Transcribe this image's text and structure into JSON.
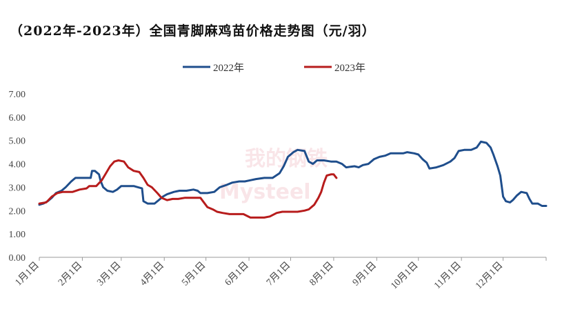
{
  "chart_data": {
    "type": "line",
    "title": "（2022年-2023年）全国青脚麻鸡苗价格走势图（元/羽）",
    "xlabel": "",
    "ylabel": "",
    "ylim": [
      0,
      7
    ],
    "yticks": [
      "0.00",
      "1.00",
      "2.00",
      "3.00",
      "4.00",
      "5.00",
      "6.00",
      "7.00"
    ],
    "xlim": [
      1,
      366
    ],
    "xticks": [
      {
        "day": 1,
        "label": "1月1日"
      },
      {
        "day": 32,
        "label": "2月1日"
      },
      {
        "day": 60,
        "label": "3月1日"
      },
      {
        "day": 91,
        "label": "4月1日"
      },
      {
        "day": 121,
        "label": "5月1日"
      },
      {
        "day": 152,
        "label": "6月1日"
      },
      {
        "day": 182,
        "label": "7月1日"
      },
      {
        "day": 213,
        "label": "8月1日"
      },
      {
        "day": 244,
        "label": "9月1日"
      },
      {
        "day": 274,
        "label": "10月1日"
      },
      {
        "day": 305,
        "label": "11月1日"
      },
      {
        "day": 335,
        "label": "12月1日"
      }
    ],
    "grid": false,
    "legend": "top-center",
    "series": [
      {
        "name": "2022年",
        "color": "#1f4e8c",
        "points": [
          [
            1,
            2.25
          ],
          [
            4,
            2.3
          ],
          [
            7,
            2.4
          ],
          [
            10,
            2.55
          ],
          [
            13,
            2.75
          ],
          [
            17,
            2.85
          ],
          [
            20,
            3.0
          ],
          [
            24,
            3.25
          ],
          [
            27,
            3.4
          ],
          [
            31,
            3.4
          ],
          [
            35,
            3.4
          ],
          [
            38,
            3.4
          ],
          [
            39,
            3.7
          ],
          [
            41,
            3.7
          ],
          [
            44,
            3.55
          ],
          [
            45,
            3.3
          ],
          [
            47,
            3.0
          ],
          [
            50,
            2.85
          ],
          [
            54,
            2.8
          ],
          [
            57,
            2.9
          ],
          [
            60,
            3.05
          ],
          [
            64,
            3.05
          ],
          [
            69,
            3.05
          ],
          [
            72,
            3.0
          ],
          [
            75,
            2.95
          ],
          [
            76,
            2.4
          ],
          [
            79,
            2.3
          ],
          [
            84,
            2.3
          ],
          [
            87,
            2.45
          ],
          [
            90,
            2.6
          ],
          [
            93,
            2.7
          ],
          [
            98,
            2.8
          ],
          [
            102,
            2.85
          ],
          [
            107,
            2.85
          ],
          [
            112,
            2.9
          ],
          [
            115,
            2.85
          ],
          [
            117,
            2.75
          ],
          [
            122,
            2.75
          ],
          [
            127,
            2.8
          ],
          [
            131,
            3.0
          ],
          [
            136,
            3.1
          ],
          [
            140,
            3.2
          ],
          [
            145,
            3.25
          ],
          [
            149,
            3.25
          ],
          [
            153,
            3.3
          ],
          [
            157,
            3.35
          ],
          [
            163,
            3.4
          ],
          [
            169,
            3.4
          ],
          [
            174,
            3.6
          ],
          [
            177,
            3.9
          ],
          [
            180,
            4.3
          ],
          [
            184,
            4.5
          ],
          [
            187,
            4.6
          ],
          [
            192,
            4.55
          ],
          [
            195,
            4.1
          ],
          [
            198,
            4.0
          ],
          [
            201,
            4.15
          ],
          [
            206,
            4.15
          ],
          [
            211,
            4.1
          ],
          [
            215,
            4.1
          ],
          [
            219,
            4.0
          ],
          [
            222,
            3.85
          ],
          [
            228,
            3.9
          ],
          [
            231,
            3.85
          ],
          [
            234,
            3.95
          ],
          [
            238,
            4.0
          ],
          [
            242,
            4.2
          ],
          [
            246,
            4.3
          ],
          [
            250,
            4.35
          ],
          [
            254,
            4.45
          ],
          [
            258,
            4.45
          ],
          [
            263,
            4.45
          ],
          [
            266,
            4.5
          ],
          [
            271,
            4.45
          ],
          [
            274,
            4.4
          ],
          [
            277,
            4.2
          ],
          [
            280,
            4.05
          ],
          [
            282,
            3.8
          ],
          [
            287,
            3.85
          ],
          [
            292,
            3.95
          ],
          [
            297,
            4.1
          ],
          [
            300,
            4.25
          ],
          [
            303,
            4.55
          ],
          [
            307,
            4.6
          ],
          [
            312,
            4.6
          ],
          [
            316,
            4.7
          ],
          [
            319,
            4.95
          ],
          [
            323,
            4.9
          ],
          [
            326,
            4.7
          ],
          [
            328,
            4.4
          ],
          [
            331,
            3.9
          ],
          [
            333,
            3.5
          ],
          [
            335,
            2.6
          ],
          [
            337,
            2.4
          ],
          [
            340,
            2.35
          ],
          [
            342,
            2.45
          ],
          [
            345,
            2.65
          ],
          [
            348,
            2.8
          ],
          [
            352,
            2.75
          ],
          [
            354,
            2.5
          ],
          [
            356,
            2.3
          ],
          [
            360,
            2.3
          ],
          [
            363,
            2.2
          ],
          [
            366,
            2.2
          ]
        ]
      },
      {
        "name": "2023年",
        "color": "#b71c1c",
        "points": [
          [
            1,
            2.3
          ],
          [
            6,
            2.35
          ],
          [
            10,
            2.6
          ],
          [
            14,
            2.75
          ],
          [
            18,
            2.8
          ],
          [
            25,
            2.8
          ],
          [
            30,
            2.9
          ],
          [
            35,
            2.95
          ],
          [
            37,
            3.05
          ],
          [
            42,
            3.05
          ],
          [
            46,
            3.3
          ],
          [
            49,
            3.6
          ],
          [
            52,
            3.9
          ],
          [
            55,
            4.1
          ],
          [
            58,
            4.15
          ],
          [
            62,
            4.1
          ],
          [
            65,
            3.85
          ],
          [
            69,
            3.7
          ],
          [
            73,
            3.65
          ],
          [
            76,
            3.4
          ],
          [
            79,
            3.1
          ],
          [
            82,
            3.0
          ],
          [
            86,
            2.75
          ],
          [
            89,
            2.55
          ],
          [
            93,
            2.45
          ],
          [
            97,
            2.5
          ],
          [
            101,
            2.5
          ],
          [
            106,
            2.55
          ],
          [
            111,
            2.55
          ],
          [
            117,
            2.55
          ],
          [
            122,
            2.15
          ],
          [
            126,
            2.05
          ],
          [
            129,
            1.95
          ],
          [
            133,
            1.9
          ],
          [
            138,
            1.85
          ],
          [
            143,
            1.85
          ],
          [
            148,
            1.85
          ],
          [
            153,
            1.7
          ],
          [
            157,
            1.7
          ],
          [
            163,
            1.7
          ],
          [
            167,
            1.75
          ],
          [
            172,
            1.9
          ],
          [
            176,
            1.95
          ],
          [
            181,
            1.95
          ],
          [
            187,
            1.95
          ],
          [
            192,
            2.0
          ],
          [
            195,
            2.05
          ],
          [
            199,
            2.25
          ],
          [
            202,
            2.55
          ],
          [
            204,
            2.8
          ],
          [
            206,
            3.2
          ],
          [
            208,
            3.5
          ],
          [
            211,
            3.55
          ],
          [
            213,
            3.55
          ],
          [
            215,
            3.4
          ]
        ]
      }
    ]
  }
}
